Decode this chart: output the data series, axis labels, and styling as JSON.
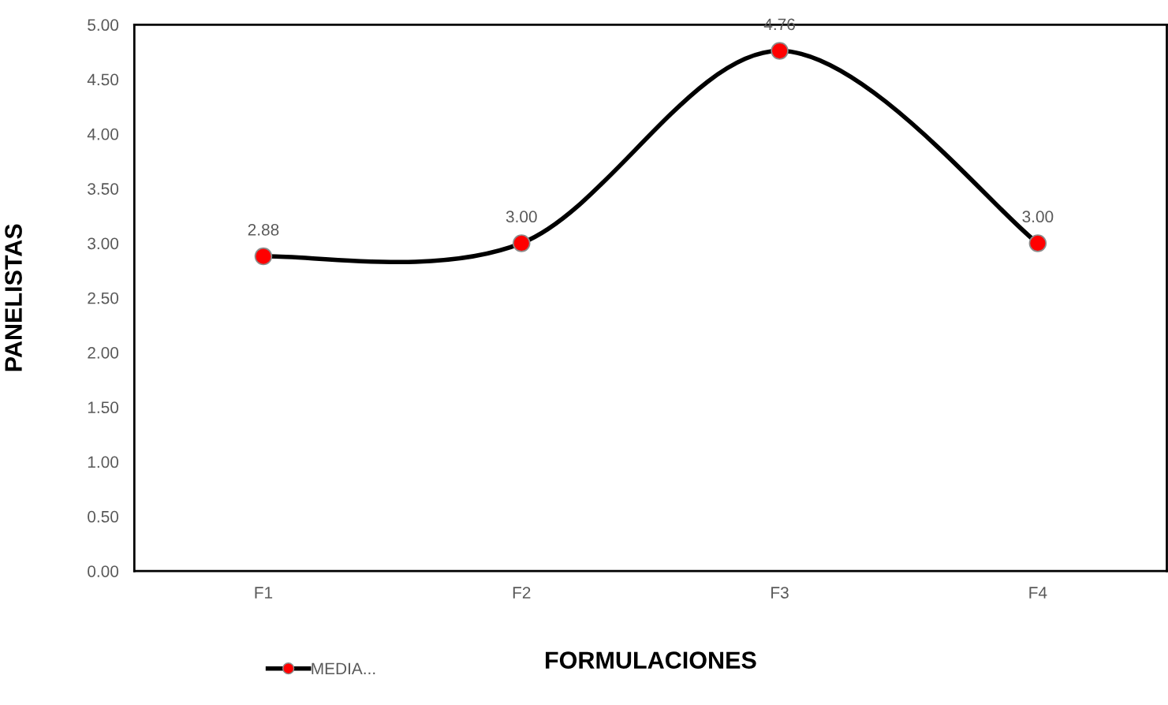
{
  "chart_data": {
    "type": "line",
    "xlabel": "FORMULACIONES",
    "ylabel": "PANELISTAS",
    "categories": [
      "F1",
      "F2",
      "F3",
      "F4"
    ],
    "series": [
      {
        "name": "MEDIA...",
        "color": "#000000",
        "colors": [
          "#ff0000",
          "#ff0000",
          "#ff0000",
          "#ff0000"
        ],
        "values": [
          2.88,
          3.0,
          4.76,
          3.0
        ],
        "value_labels": [
          "2.88",
          "3.00",
          "4.76",
          "3.00"
        ]
      }
    ],
    "ylim": [
      0,
      5
    ],
    "yticks": [
      {
        "value": 0,
        "label": "0.00"
      },
      {
        "value": 0.5,
        "label": "0.50"
      },
      {
        "value": 1,
        "label": "1.00"
      },
      {
        "value": 1.5,
        "label": "1.50"
      },
      {
        "value": 2,
        "label": "2.00"
      },
      {
        "value": 2.5,
        "label": "2.50"
      },
      {
        "value": 3,
        "label": "3.00"
      },
      {
        "value": 3.5,
        "label": "3.50"
      },
      {
        "value": 4,
        "label": "4.00"
      },
      {
        "value": 4.5,
        "label": "4.50"
      },
      {
        "value": 5,
        "label": "5.00"
      }
    ],
    "grid": false,
    "legend": "bottom left",
    "marker": "circle",
    "line_style": "solid"
  }
}
